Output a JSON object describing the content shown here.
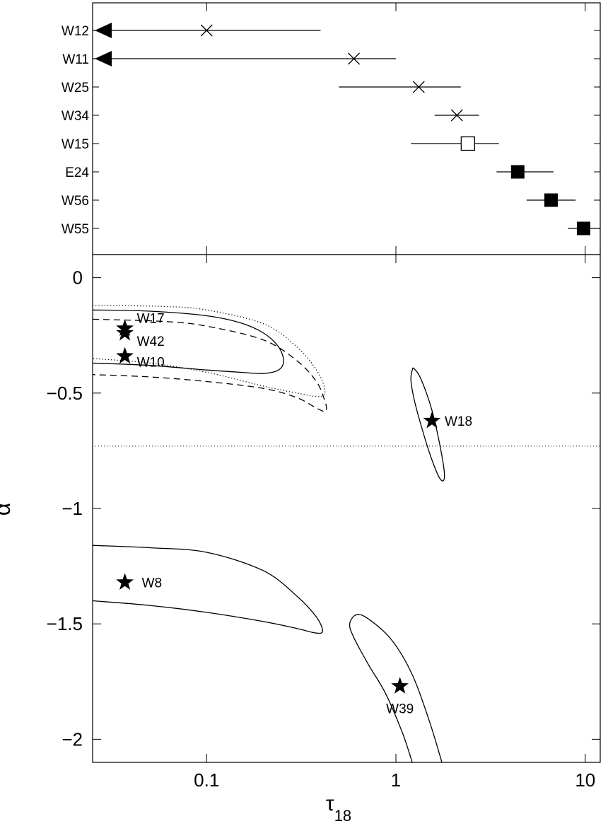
{
  "chart_data": [
    {
      "type": "scatter",
      "panel": "top",
      "xscale": "log",
      "xlim": [
        0.025,
        12
      ],
      "categories": [
        "W12",
        "W11",
        "W25",
        "W34",
        "W15",
        "E24",
        "W56",
        "W55"
      ],
      "points": [
        {
          "label": "W12",
          "x": 0.1,
          "xerr": [
            0.025,
            0.4
          ],
          "marker": "x",
          "upper_limit_arrow": true
        },
        {
          "label": "W11",
          "x": 0.6,
          "xerr": [
            0.025,
            1.0
          ],
          "marker": "x",
          "upper_limit_arrow": true
        },
        {
          "label": "W25",
          "x": 1.32,
          "xerr": [
            0.5,
            2.2
          ],
          "marker": "x"
        },
        {
          "label": "W34",
          "x": 2.1,
          "xerr": [
            1.6,
            2.75
          ],
          "marker": "x"
        },
        {
          "label": "W15",
          "x": 2.4,
          "xerr": [
            1.2,
            3.5
          ],
          "marker": "open-square"
        },
        {
          "label": "E24",
          "x": 4.4,
          "xerr": [
            3.4,
            6.8
          ],
          "marker": "filled-square"
        },
        {
          "label": "W56",
          "x": 6.6,
          "xerr": [
            4.9,
            8.9
          ],
          "marker": "filled-square"
        },
        {
          "label": "W55",
          "x": 9.8,
          "xerr": [
            8.1,
            12
          ],
          "marker": "filled-square"
        }
      ]
    },
    {
      "type": "scatter",
      "panel": "bottom",
      "xlabel": "τ",
      "xlabel_sub": "18",
      "ylabel": "α",
      "xscale": "log",
      "xlim": [
        0.025,
        12
      ],
      "ylim": [
        -2.1,
        0.1
      ],
      "xticks": [
        {
          "value": 0.1,
          "label": "0.1"
        },
        {
          "value": 1,
          "label": "1"
        },
        {
          "value": 10,
          "label": "10"
        }
      ],
      "yticks": [
        {
          "value": 0,
          "label": "0"
        },
        {
          "value": -0.5,
          "label": "−0.5"
        },
        {
          "value": -1,
          "label": "−1"
        },
        {
          "value": -1.5,
          "label": "−1.5"
        },
        {
          "value": -2,
          "label": "−2"
        }
      ],
      "reference_line_y": -0.73,
      "stars": [
        {
          "label": "W17",
          "x": 0.037,
          "y": -0.22
        },
        {
          "label": "W42",
          "x": 0.037,
          "y": -0.24
        },
        {
          "label": "W10",
          "x": 0.037,
          "y": -0.34
        },
        {
          "label": "W18",
          "x": 1.55,
          "y": -0.62
        },
        {
          "label": "W8",
          "x": 0.037,
          "y": -1.32
        },
        {
          "label": "W39",
          "x": 1.05,
          "y": -1.77
        }
      ],
      "contours": [
        {
          "style": "solid",
          "points": [
            [
              0.025,
              -0.14
            ],
            [
              0.05,
              -0.145
            ],
            [
              0.1,
              -0.165
            ],
            [
              0.15,
              -0.195
            ],
            [
              0.2,
              -0.24
            ],
            [
              0.24,
              -0.3
            ],
            [
              0.255,
              -0.36
            ],
            [
              0.24,
              -0.4
            ],
            [
              0.2,
              -0.415
            ],
            [
              0.15,
              -0.41
            ],
            [
              0.1,
              -0.4
            ],
            [
              0.05,
              -0.38
            ],
            [
              0.025,
              -0.37
            ]
          ]
        },
        {
          "style": "dashed",
          "points": [
            [
              0.025,
              -0.18
            ],
            [
              0.06,
              -0.19
            ],
            [
              0.1,
              -0.21
            ],
            [
              0.2,
              -0.27
            ],
            [
              0.3,
              -0.36
            ],
            [
              0.38,
              -0.45
            ],
            [
              0.42,
              -0.53
            ],
            [
              0.43,
              -0.57
            ],
            [
              0.42,
              -0.58
            ],
            [
              0.38,
              -0.565
            ],
            [
              0.3,
              -0.52
            ],
            [
              0.2,
              -0.48
            ],
            [
              0.1,
              -0.45
            ],
            [
              0.05,
              -0.43
            ],
            [
              0.025,
              -0.42
            ]
          ]
        },
        {
          "style": "dotted",
          "points": [
            [
              0.025,
              -0.12
            ],
            [
              0.06,
              -0.125
            ],
            [
              0.1,
              -0.14
            ],
            [
              0.2,
              -0.2
            ],
            [
              0.3,
              -0.3
            ],
            [
              0.38,
              -0.4
            ],
            [
              0.42,
              -0.48
            ],
            [
              0.4,
              -0.515
            ],
            [
              0.3,
              -0.5
            ],
            [
              0.2,
              -0.47
            ],
            [
              0.1,
              -0.41
            ],
            [
              0.05,
              -0.37
            ],
            [
              0.025,
              -0.35
            ]
          ]
        },
        {
          "style": "solid",
          "points": [
            [
              1.23,
              -0.39
            ],
            [
              1.32,
              -0.42
            ],
            [
              1.45,
              -0.5
            ],
            [
              1.58,
              -0.6
            ],
            [
              1.72,
              -0.74
            ],
            [
              1.8,
              -0.84
            ],
            [
              1.78,
              -0.88
            ],
            [
              1.68,
              -0.86
            ],
            [
              1.52,
              -0.77
            ],
            [
              1.38,
              -0.66
            ],
            [
              1.25,
              -0.53
            ],
            [
              1.2,
              -0.44
            ],
            [
              1.23,
              -0.39
            ]
          ]
        },
        {
          "style": "solid",
          "points": [
            [
              0.025,
              -1.16
            ],
            [
              0.05,
              -1.17
            ],
            [
              0.1,
              -1.19
            ],
            [
              0.2,
              -1.27
            ],
            [
              0.3,
              -1.38
            ],
            [
              0.38,
              -1.47
            ],
            [
              0.41,
              -1.53
            ],
            [
              0.38,
              -1.54
            ],
            [
              0.3,
              -1.52
            ],
            [
              0.2,
              -1.49
            ],
            [
              0.1,
              -1.45
            ],
            [
              0.05,
              -1.42
            ],
            [
              0.025,
              -1.4
            ]
          ]
        },
        {
          "style": "solid",
          "points": [
            [
              1.22,
              -2.1
            ],
            [
              1.08,
              -1.97
            ],
            [
              0.88,
              -1.8
            ],
            [
              0.72,
              -1.68
            ],
            [
              0.6,
              -1.56
            ],
            [
              0.57,
              -1.5
            ],
            [
              0.62,
              -1.46
            ],
            [
              0.72,
              -1.48
            ],
            [
              0.95,
              -1.57
            ],
            [
              1.22,
              -1.72
            ],
            [
              1.5,
              -1.92
            ],
            [
              1.75,
              -2.1
            ]
          ]
        }
      ]
    }
  ]
}
